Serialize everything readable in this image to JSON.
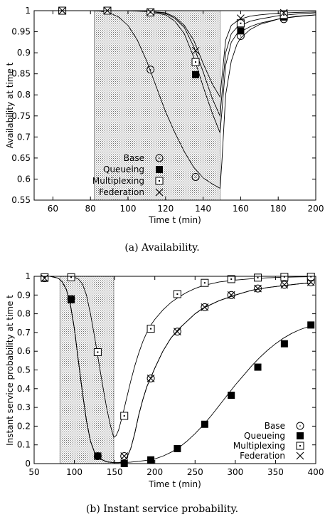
{
  "chart_data": [
    {
      "type": "line",
      "caption": "(a) Availability.",
      "xlabel": "Time t  (min)",
      "ylabel": "Availability at time t",
      "xlim": [
        50,
        200
      ],
      "ylim": [
        0.55,
        1.0
      ],
      "xticks": [
        "60",
        "80",
        "100",
        "120",
        "140",
        "160",
        "180",
        "200"
      ],
      "yticks": [
        "0.55",
        "0.6",
        "0.65",
        "0.7",
        "0.75",
        "0.8",
        "0.85",
        "0.9",
        "0.95",
        "1"
      ],
      "shaded_interval": [
        82,
        149
      ],
      "legend_position": "bottom-left",
      "series": [
        {
          "name": "Base",
          "marker": "circle",
          "x": [
            50,
            60,
            70,
            80,
            85,
            90,
            95,
            100,
            105,
            110,
            115,
            120,
            125,
            130,
            135,
            140,
            145,
            149,
            150,
            152,
            155,
            158,
            160,
            165,
            170,
            180,
            190,
            200
          ],
          "y": [
            1.0,
            1.0,
            1.0,
            1.0,
            0.999,
            0.995,
            0.985,
            0.965,
            0.93,
            0.88,
            0.82,
            0.76,
            0.71,
            0.665,
            0.628,
            0.603,
            0.588,
            0.578,
            0.64,
            0.8,
            0.88,
            0.92,
            0.935,
            0.955,
            0.967,
            0.98,
            0.987,
            0.99
          ],
          "marker_x": [
            65,
            89,
            112,
            136,
            160,
            183
          ],
          "marker_y": [
            1.0,
            1.0,
            0.86,
            0.605,
            0.94,
            0.98
          ]
        },
        {
          "name": "Queueing",
          "marker": "filled-square",
          "x": [
            50,
            60,
            70,
            80,
            90,
            100,
            110,
            120,
            125,
            130,
            135,
            140,
            145,
            149,
            150,
            152,
            155,
            158,
            160,
            165,
            170,
            180,
            190,
            200
          ],
          "y": [
            1.0,
            1.0,
            1.0,
            1.0,
            1.0,
            1.0,
            0.998,
            0.99,
            0.975,
            0.945,
            0.89,
            0.82,
            0.755,
            0.71,
            0.76,
            0.87,
            0.925,
            0.945,
            0.95,
            0.962,
            0.97,
            0.98,
            0.986,
            0.99
          ],
          "marker_x": [
            65,
            89,
            112,
            136,
            160,
            183
          ],
          "marker_y": [
            1.0,
            1.0,
            0.995,
            0.848,
            0.952,
            0.985
          ]
        },
        {
          "name": "Multiplexing",
          "marker": "open-square",
          "x": [
            50,
            60,
            70,
            80,
            90,
            100,
            110,
            120,
            125,
            130,
            135,
            140,
            145,
            149,
            150,
            152,
            155,
            158,
            160,
            165,
            170,
            180,
            190,
            200
          ],
          "y": [
            1.0,
            1.0,
            1.0,
            1.0,
            1.0,
            1.0,
            0.999,
            0.993,
            0.982,
            0.96,
            0.915,
            0.855,
            0.79,
            0.75,
            0.8,
            0.9,
            0.945,
            0.96,
            0.965,
            0.975,
            0.98,
            0.988,
            0.992,
            0.995
          ],
          "marker_x": [
            65,
            89,
            112,
            136,
            160,
            183
          ],
          "marker_y": [
            1.0,
            1.0,
            0.996,
            0.878,
            0.97,
            0.99
          ]
        },
        {
          "name": "Federation",
          "marker": "cross",
          "x": [
            50,
            60,
            70,
            80,
            90,
            100,
            110,
            120,
            125,
            130,
            135,
            140,
            145,
            149,
            150,
            152,
            155,
            158,
            160,
            165,
            170,
            180,
            190,
            200
          ],
          "y": [
            1.0,
            1.0,
            1.0,
            1.0,
            1.0,
            1.0,
            0.999,
            0.995,
            0.985,
            0.965,
            0.93,
            0.875,
            0.825,
            0.795,
            0.84,
            0.93,
            0.965,
            0.975,
            0.98,
            0.987,
            0.99,
            0.994,
            0.996,
            0.997
          ],
          "marker_x": [
            65,
            89,
            112,
            136,
            160,
            183
          ],
          "marker_y": [
            1.0,
            1.0,
            0.997,
            0.905,
            0.982,
            0.995
          ]
        }
      ]
    },
    {
      "type": "line",
      "caption": "(b) Instant service probability.",
      "xlabel": "Time t  (min)",
      "ylabel": "Instant service probability at time t",
      "xlim": [
        50,
        400
      ],
      "ylim": [
        0,
        1
      ],
      "xticks": [
        "50",
        "100",
        "150",
        "200",
        "250",
        "300",
        "350",
        "400"
      ],
      "yticks": [
        "0",
        "0.1",
        "0.2",
        "0.3",
        "0.4",
        "0.5",
        "0.6",
        "0.7",
        "0.8",
        "0.9",
        "1"
      ],
      "shaded_interval": [
        82,
        149
      ],
      "legend_position": "bottom-right",
      "series": [
        {
          "name": "Base",
          "marker": "circle",
          "x": [
            50,
            60,
            70,
            80,
            85,
            90,
            95,
            100,
            105,
            110,
            115,
            120,
            125,
            130,
            140,
            149,
            155,
            160,
            165,
            170,
            175,
            180,
            185,
            190,
            195,
            200,
            210,
            220,
            230,
            240,
            250,
            260,
            280,
            300,
            320,
            340,
            360,
            380,
            395
          ],
          "y": [
            1.0,
            1.0,
            1.0,
            0.99,
            0.97,
            0.93,
            0.85,
            0.72,
            0.55,
            0.38,
            0.23,
            0.12,
            0.06,
            0.03,
            0.01,
            0.005,
            0.005,
            0.01,
            0.03,
            0.08,
            0.16,
            0.26,
            0.34,
            0.41,
            0.46,
            0.51,
            0.6,
            0.67,
            0.72,
            0.76,
            0.8,
            0.83,
            0.87,
            0.9,
            0.925,
            0.94,
            0.95,
            0.96,
            0.965
          ],
          "marker_x": [
            63,
            96,
            129,
            162,
            195,
            228,
            262,
            295,
            328,
            361,
            394
          ],
          "marker_y": [
            0.99,
            0.88,
            0.04,
            0.04,
            0.455,
            0.705,
            0.835,
            0.9,
            0.935,
            0.955,
            0.968
          ]
        },
        {
          "name": "Queueing",
          "marker": "filled-square",
          "x": [
            50,
            60,
            70,
            80,
            85,
            90,
            95,
            100,
            105,
            110,
            115,
            120,
            125,
            130,
            140,
            149,
            160,
            170,
            180,
            190,
            200,
            210,
            220,
            230,
            240,
            250,
            260,
            270,
            280,
            290,
            300,
            310,
            320,
            330,
            340,
            350,
            360,
            370,
            380,
            390,
            395
          ],
          "y": [
            1.0,
            1.0,
            1.0,
            0.99,
            0.97,
            0.93,
            0.85,
            0.72,
            0.55,
            0.38,
            0.23,
            0.12,
            0.06,
            0.03,
            0.01,
            0.005,
            0.005,
            0.008,
            0.012,
            0.018,
            0.025,
            0.04,
            0.06,
            0.085,
            0.12,
            0.16,
            0.205,
            0.255,
            0.31,
            0.365,
            0.42,
            0.47,
            0.52,
            0.565,
            0.605,
            0.64,
            0.67,
            0.695,
            0.715,
            0.73,
            0.74
          ],
          "marker_x": [
            63,
            96,
            129,
            162,
            195,
            228,
            262,
            295,
            328,
            361,
            394
          ],
          "marker_y": [
            0.99,
            0.875,
            0.04,
            0.0,
            0.02,
            0.08,
            0.21,
            0.365,
            0.515,
            0.64,
            0.74
          ]
        },
        {
          "name": "Multiplexing",
          "marker": "open-square",
          "x": [
            50,
            60,
            70,
            80,
            90,
            100,
            105,
            110,
            115,
            120,
            125,
            130,
            135,
            140,
            145,
            149,
            152,
            155,
            160,
            165,
            170,
            175,
            180,
            185,
            190,
            195,
            200,
            210,
            220,
            230,
            240,
            250,
            260,
            280,
            300,
            320,
            340,
            360,
            380,
            395
          ],
          "y": [
            1.0,
            1.0,
            1.0,
            1.0,
            1.0,
            0.995,
            0.985,
            0.96,
            0.9,
            0.8,
            0.68,
            0.55,
            0.42,
            0.3,
            0.2,
            0.14,
            0.15,
            0.18,
            0.26,
            0.35,
            0.44,
            0.52,
            0.59,
            0.65,
            0.7,
            0.74,
            0.77,
            0.82,
            0.86,
            0.89,
            0.915,
            0.935,
            0.95,
            0.97,
            0.98,
            0.987,
            0.992,
            0.995,
            0.997,
            0.998
          ],
          "marker_x": [
            63,
            96,
            129,
            162,
            195,
            228,
            262,
            295,
            328,
            361,
            394
          ],
          "marker_y": [
            0.995,
            0.995,
            0.595,
            0.255,
            0.72,
            0.905,
            0.965,
            0.985,
            0.993,
            0.997,
            0.998
          ]
        },
        {
          "name": "Federation",
          "marker": "cross",
          "x": [
            50,
            60,
            70,
            80,
            85,
            90,
            95,
            100,
            105,
            110,
            115,
            120,
            125,
            130,
            140,
            149,
            155,
            160,
            165,
            170,
            175,
            180,
            185,
            190,
            195,
            200,
            210,
            220,
            230,
            240,
            250,
            260,
            280,
            300,
            320,
            340,
            360,
            380,
            395
          ],
          "y": [
            1.0,
            1.0,
            1.0,
            0.99,
            0.97,
            0.93,
            0.85,
            0.72,
            0.55,
            0.38,
            0.23,
            0.12,
            0.06,
            0.03,
            0.01,
            0.005,
            0.005,
            0.01,
            0.03,
            0.08,
            0.16,
            0.26,
            0.34,
            0.41,
            0.46,
            0.51,
            0.6,
            0.67,
            0.72,
            0.76,
            0.8,
            0.83,
            0.87,
            0.9,
            0.925,
            0.94,
            0.95,
            0.96,
            0.965
          ],
          "marker_x": [
            63,
            96,
            129,
            162,
            195,
            228,
            262,
            295,
            328,
            361,
            394
          ],
          "marker_y": [
            0.99,
            0.88,
            0.04,
            0.04,
            0.455,
            0.705,
            0.835,
            0.9,
            0.935,
            0.955,
            0.968
          ]
        }
      ]
    }
  ]
}
